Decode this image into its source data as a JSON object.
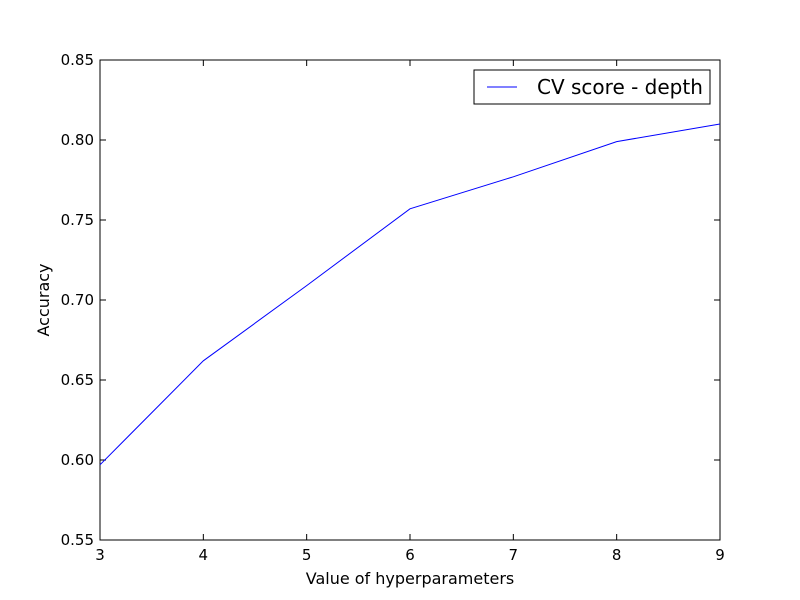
{
  "chart_data": {
    "type": "line",
    "x": [
      3,
      4,
      5,
      6,
      7,
      8,
      9
    ],
    "series": [
      {
        "name": "CV score - depth",
        "color": "#0000ff",
        "values": [
          0.597,
          0.662,
          0.709,
          0.757,
          0.777,
          0.799,
          0.81
        ]
      }
    ],
    "xlabel": "Value of hyperparameters",
    "ylabel": "Accuracy",
    "xlim": [
      3,
      9
    ],
    "ylim": [
      0.55,
      0.85
    ],
    "xticks": [
      "3",
      "4",
      "5",
      "6",
      "7",
      "8",
      "9"
    ],
    "yticks": [
      "0.55",
      "0.60",
      "0.65",
      "0.70",
      "0.75",
      "0.80",
      "0.85"
    ],
    "grid": false,
    "legend_position": "top-right"
  }
}
